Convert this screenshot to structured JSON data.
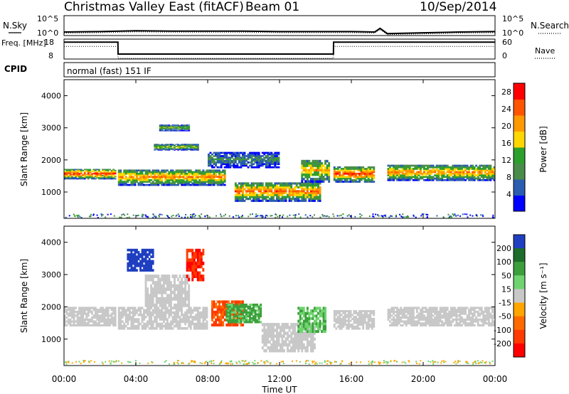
{
  "header": {
    "title": "Christmas Valley East (fitACF)",
    "beam": "Beam 01",
    "date": "10/Sep/2014"
  },
  "colors": {
    "power_scale": [
      "#0000ff",
      "#2a5db0",
      "#4a8c4a",
      "#2ca02c",
      "#ffd700",
      "#ff9900",
      "#ff5500",
      "#ff0000"
    ],
    "velocity_scale": [
      "#1f3fc0",
      "#1c6e2a",
      "#3c9f3c",
      "#6fd46f",
      "#c8c8c8",
      "#ffa500",
      "#ff6a00",
      "#ff3a00",
      "#ff0000"
    ],
    "noise_gray": "#aaaaaa"
  },
  "chart_data": [
    {
      "type": "line",
      "panel": "noise",
      "ylabel_left": "N.Sky",
      "ylabel_right": "N.Search",
      "yticks_left": [
        "10^5",
        "10^0"
      ],
      "yticks_right": [
        "10^5",
        "10^0"
      ],
      "ylim": [
        0,
        5
      ],
      "x": [
        0,
        2,
        4,
        6,
        8,
        10,
        12,
        14,
        16,
        17.3,
        17.6,
        18,
        20,
        22,
        24
      ],
      "series": [
        {
          "values": [
            0.9,
            1.0,
            1.2,
            1.1,
            1.1,
            1.1,
            1.0,
            1.0,
            1.0,
            0.9,
            1.8,
            0.5,
            0.7,
            0.9,
            1.0
          ]
        }
      ]
    },
    {
      "type": "line",
      "panel": "frequency",
      "ylabel_left": "Freq. [MHz]",
      "ylabel_right": "Nave",
      "yticks_left": [
        "18",
        "8"
      ],
      "yticks_right": [
        "60",
        "0"
      ],
      "ylim": [
        8,
        18
      ],
      "x": [
        0,
        3.0,
        3.01,
        15.0,
        15.01,
        24
      ],
      "series": [
        {
          "values": [
            16.5,
            16.5,
            10.5,
            10.5,
            16.5,
            16.5
          ]
        }
      ]
    },
    {
      "type": "table",
      "panel": "cpid",
      "label": "CPID",
      "value": "normal (fast) 151 IF"
    },
    {
      "type": "heatmap",
      "panel": "power",
      "ylabel": "Slant Range [km]",
      "xlabel": "",
      "ylim": [
        180,
        4500
      ],
      "yticks": [
        "1000",
        "2000",
        "3000",
        "4000"
      ],
      "colorbar_label": "Power [dB]",
      "colorbar_ticks": [
        "4",
        "8",
        "12",
        "16",
        "20",
        "24",
        "28"
      ],
      "colorbar_range": [
        0,
        30
      ],
      "bands": [
        {
          "t0": 0.0,
          "t1": 2.9,
          "r0": 1400,
          "r1": 1720,
          "peak": 26
        },
        {
          "t0": 3.0,
          "t1": 9.0,
          "r0": 1200,
          "r1": 1700,
          "peak": 22
        },
        {
          "t0": 5.0,
          "t1": 7.5,
          "r0": 2300,
          "r1": 2500,
          "peak": 16
        },
        {
          "t0": 5.3,
          "t1": 7.0,
          "r0": 2900,
          "r1": 3100,
          "peak": 14
        },
        {
          "t0": 8.0,
          "t1": 12.0,
          "r0": 1750,
          "r1": 2250,
          "peak": 9
        },
        {
          "t0": 9.5,
          "t1": 14.3,
          "r0": 700,
          "r1": 1300,
          "peak": 24
        },
        {
          "t0": 13.2,
          "t1": 14.8,
          "r0": 1300,
          "r1": 2000,
          "peak": 20
        },
        {
          "t0": 15.0,
          "t1": 17.3,
          "r0": 1300,
          "r1": 1800,
          "peak": 26
        },
        {
          "t0": 18.0,
          "t1": 24.0,
          "r0": 1350,
          "r1": 1850,
          "peak": 22
        }
      ]
    },
    {
      "type": "heatmap",
      "panel": "velocity",
      "ylabel": "Slant Range [km]",
      "xlabel": "Time UT",
      "xticks": [
        "00:00",
        "04:00",
        "08:00",
        "12:00",
        "16:00",
        "20:00",
        "00:00"
      ],
      "xlim": [
        0,
        24
      ],
      "ylim": [
        180,
        4500
      ],
      "yticks": [
        "1000",
        "2000",
        "3000",
        "4000"
      ],
      "colorbar_label": "Velocity [m s⁻¹]",
      "colorbar_ticks": [
        "200",
        "100",
        "50",
        "15",
        "-15",
        "-50",
        "-100",
        "-200"
      ],
      "colorbar_range": [
        -250,
        250
      ],
      "bands": [
        {
          "t0": 0.0,
          "t1": 2.9,
          "r0": 1400,
          "r1": 2000,
          "v": 0
        },
        {
          "t0": 3.0,
          "t1": 8.0,
          "r0": 1300,
          "r1": 2000,
          "v": 0
        },
        {
          "t0": 4.5,
          "t1": 7.0,
          "r0": 2000,
          "r1": 3000,
          "v": 0
        },
        {
          "t0": 6.8,
          "t1": 7.8,
          "r0": 2800,
          "r1": 3800,
          "v": -150
        },
        {
          "t0": 3.5,
          "t1": 5.0,
          "r0": 3100,
          "r1": 3800,
          "v": 180
        },
        {
          "t0": 8.2,
          "t1": 10.0,
          "r0": 1400,
          "r1": 2200,
          "v": -80
        },
        {
          "t0": 9.0,
          "t1": 11.0,
          "r0": 1500,
          "r1": 2100,
          "v": 40
        },
        {
          "t0": 11.0,
          "t1": 14.0,
          "r0": 600,
          "r1": 1500,
          "v": 0
        },
        {
          "t0": 13.0,
          "t1": 14.6,
          "r0": 1200,
          "r1": 2000,
          "v": 30
        },
        {
          "t0": 15.0,
          "t1": 17.3,
          "r0": 1300,
          "r1": 1900,
          "v": 0
        },
        {
          "t0": 18.0,
          "t1": 24.0,
          "r0": 1400,
          "r1": 2000,
          "v": 0
        }
      ]
    }
  ]
}
